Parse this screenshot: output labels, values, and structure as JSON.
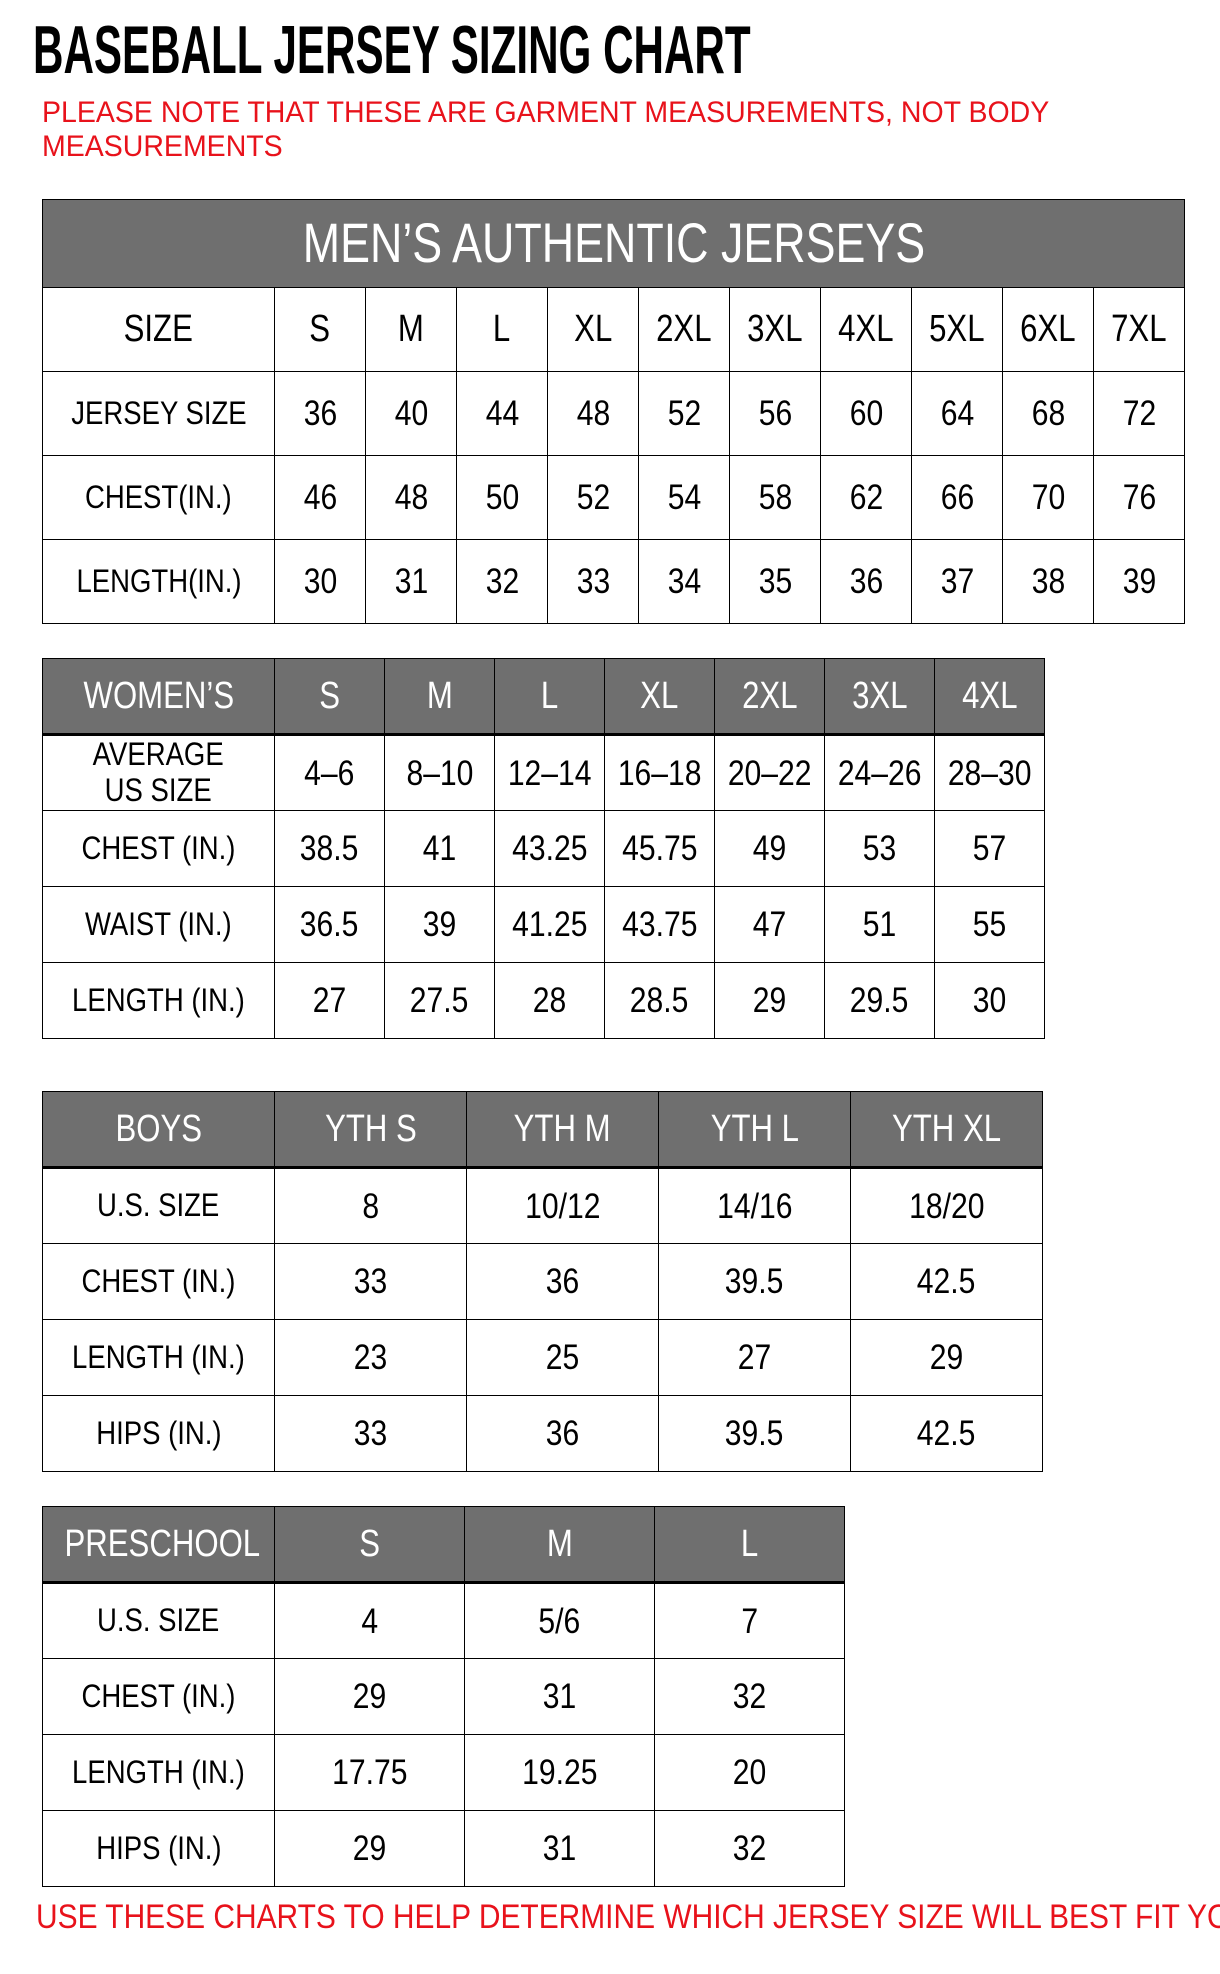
{
  "page": {
    "title": "BASEBALL JERSEY SIZING CHART",
    "note": "PLEASE NOTE THAT THESE ARE GARMENT MEASUREMENTS, NOT BODY\nMEASUREMENTS",
    "footer": "USE THESE CHARTS TO HELP DETERMINE WHICH JERSEY SIZE WILL BEST FIT YOU.",
    "colors": {
      "accent_red": "#e8121b",
      "header_gray": "#6f6f6f",
      "header_text": "#ffffff",
      "border_black": "#000000"
    }
  },
  "tables": {
    "mens": {
      "merged_title": "MEN’S AUTHENTIC JERSEYS",
      "header": {
        "label": "SIZE",
        "values": [
          "S",
          "M",
          "L",
          "XL",
          "2XL",
          "3XL",
          "4XL",
          "5XL",
          "6XL",
          "7XL"
        ]
      },
      "rows": [
        {
          "label": "JERSEY SIZE",
          "values": [
            "36",
            "40",
            "44",
            "48",
            "52",
            "56",
            "60",
            "64",
            "68",
            "72"
          ]
        },
        {
          "label": "CHEST(IN.)",
          "values": [
            "46",
            "48",
            "50",
            "52",
            "54",
            "58",
            "62",
            "66",
            "70",
            "76"
          ]
        },
        {
          "label": "LENGTH(IN.)",
          "values": [
            "30",
            "31",
            "32",
            "33",
            "34",
            "35",
            "36",
            "37",
            "38",
            "39"
          ]
        }
      ]
    },
    "womens": {
      "header": {
        "label": "WOMEN’S",
        "values": [
          "S",
          "M",
          "L",
          "XL",
          "2XL",
          "3XL",
          "4XL"
        ]
      },
      "rows": [
        {
          "label": "AVERAGE\nUS SIZE",
          "values": [
            "4–6",
            "8–10",
            "12–14",
            "16–18",
            "20–22",
            "24–26",
            "28–30"
          ]
        },
        {
          "label": "CHEST (IN.)",
          "values": [
            "38.5",
            "41",
            "43.25",
            "45.75",
            "49",
            "53",
            "57"
          ]
        },
        {
          "label": "WAIST (IN.)",
          "values": [
            "36.5",
            "39",
            "41.25",
            "43.75",
            "47",
            "51",
            "55"
          ]
        },
        {
          "label": "LENGTH (IN.)",
          "values": [
            "27",
            "27.5",
            "28",
            "28.5",
            "29",
            "29.5",
            "30"
          ]
        }
      ]
    },
    "boys": {
      "header": {
        "label": "BOYS",
        "values": [
          "YTH S",
          "YTH M",
          "YTH L",
          "YTH XL"
        ]
      },
      "rows": [
        {
          "label": "U.S. SIZE",
          "values": [
            "8",
            "10/12",
            "14/16",
            "18/20"
          ]
        },
        {
          "label": "CHEST (IN.)",
          "values": [
            "33",
            "36",
            "39.5",
            "42.5"
          ]
        },
        {
          "label": "LENGTH (IN.)",
          "values": [
            "23",
            "25",
            "27",
            "29"
          ]
        },
        {
          "label": "HIPS (IN.)",
          "values": [
            "33",
            "36",
            "39.5",
            "42.5"
          ]
        }
      ]
    },
    "preschool": {
      "header": {
        "label": "PRESCHOOL",
        "values": [
          "S",
          "M",
          "L"
        ]
      },
      "rows": [
        {
          "label": "U.S. SIZE",
          "values": [
            "4",
            "5/6",
            "7"
          ]
        },
        {
          "label": "CHEST (IN.)",
          "values": [
            "29",
            "31",
            "32"
          ]
        },
        {
          "label": "LENGTH (IN.)",
          "values": [
            "17.75",
            "19.25",
            "20"
          ]
        },
        {
          "label": "HIPS (IN.)",
          "values": [
            "29",
            "31",
            "32"
          ]
        }
      ]
    }
  }
}
